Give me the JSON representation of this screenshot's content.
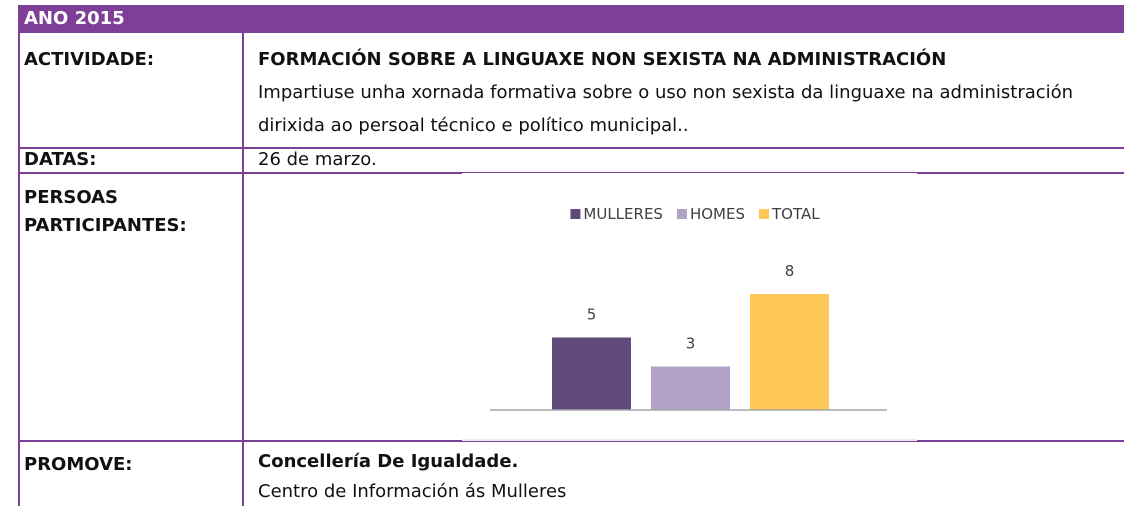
{
  "header": {
    "title": "ANO 2015"
  },
  "rows": [
    {
      "label": "ACTIVIDADE:",
      "title": "FORMACIÓN SOBRE A LINGUAXE NON SEXISTA NA ADMINISTRACIÓN",
      "text": "Impartiuse unha xornada formativa sobre o uso non sexista da linguaxe na administración dirixida ao persoal técnico e político municipal.."
    },
    {
      "label": "DATAS:",
      "text": "26 de marzo."
    },
    {
      "label": "PERSOAS PARTICIPANTES:"
    },
    {
      "label": "PROMOVE:",
      "title": "Concellería De Igualdade.",
      "text": "Centro de Información ás Mulleres"
    }
  ],
  "chart_data": {
    "type": "bar",
    "series": [
      {
        "name": "MULLERES",
        "color": "#604a7b",
        "values": [
          5
        ]
      },
      {
        "name": "HOMES",
        "color": "#b3a2c7",
        "values": [
          3
        ]
      },
      {
        "name": "TOTAL",
        "color": "#ffc658",
        "values": [
          8
        ]
      }
    ]
  }
}
